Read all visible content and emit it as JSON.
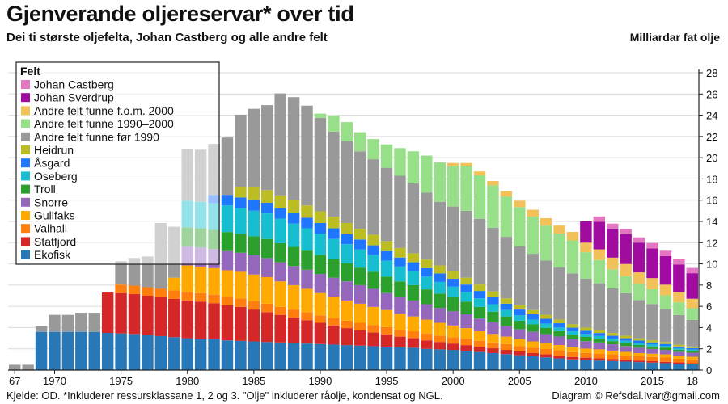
{
  "title": "Gjenverande oljereservar* over tid",
  "subtitle": "Dei ti største oljefelta, Johan Castberg og alle andre felt",
  "unit_label": "Milliardar fat olje",
  "source": "Kjelde: OD. *Inkluderer ressursklassane 1, 2 og 3. \"Olje\" inkluderer råolje, kondensat og NGL.",
  "credit": "Diagram © Refsdal.Ivar@gmail.com",
  "chart_data": {
    "type": "bar",
    "stacked": true,
    "title": "Gjenverande oljereservar* over tid",
    "ylabel": "Milliardar fat olje",
    "ylim": [
      0,
      28
    ],
    "yticks": [
      0,
      2,
      4,
      6,
      8,
      10,
      12,
      14,
      16,
      18,
      20,
      22,
      24,
      26,
      28
    ],
    "xtick_labels": [
      {
        "year": 1967,
        "label": "67"
      },
      {
        "year": 1970,
        "label": "1970"
      },
      {
        "year": 1975,
        "label": "1975"
      },
      {
        "year": 1980,
        "label": "1980"
      },
      {
        "year": 1985,
        "label": "1985"
      },
      {
        "year": 1990,
        "label": "1990"
      },
      {
        "year": 1995,
        "label": "1995"
      },
      {
        "year": 2000,
        "label": "2000"
      },
      {
        "year": 2005,
        "label": "2005"
      },
      {
        "year": 2010,
        "label": "2010"
      },
      {
        "year": 2015,
        "label": "2015"
      },
      {
        "year": 2018,
        "label": "18"
      }
    ],
    "legend_title": "Felt",
    "legend_position": "top-left",
    "categories": [
      1967,
      1968,
      1969,
      1970,
      1971,
      1972,
      1973,
      1974,
      1975,
      1976,
      1977,
      1978,
      1979,
      1980,
      1981,
      1982,
      1983,
      1984,
      1985,
      1986,
      1987,
      1988,
      1989,
      1990,
      1991,
      1992,
      1993,
      1994,
      1995,
      1996,
      1997,
      1998,
      1999,
      2000,
      2001,
      2002,
      2003,
      2004,
      2005,
      2006,
      2007,
      2008,
      2009,
      2010,
      2011,
      2012,
      2013,
      2014,
      2015,
      2016,
      2017,
      2018
    ],
    "series": [
      {
        "name": "Ekofisk",
        "color": "#2878b8",
        "values": [
          0,
          0,
          3.6,
          3.6,
          3.6,
          3.6,
          3.6,
          3.5,
          3.45,
          3.4,
          3.3,
          3.2,
          3.1,
          3.0,
          2.95,
          2.9,
          2.8,
          2.75,
          2.7,
          2.65,
          2.6,
          2.55,
          2.5,
          2.45,
          2.4,
          2.35,
          2.3,
          2.25,
          2.2,
          2.15,
          2.1,
          2.0,
          1.95,
          1.9,
          1.8,
          1.7,
          1.6,
          1.5,
          1.4,
          1.3,
          1.2,
          1.1,
          1.0,
          0.95,
          0.9,
          0.85,
          0.8,
          0.75,
          0.7,
          0.65,
          0.6,
          0.55
        ]
      },
      {
        "name": "Statfjord",
        "color": "#d62728",
        "values": [
          0,
          0,
          0,
          0,
          0,
          0,
          0,
          3.8,
          3.8,
          3.75,
          3.7,
          3.65,
          3.6,
          3.55,
          3.5,
          3.4,
          3.3,
          3.2,
          3.0,
          2.8,
          2.6,
          2.4,
          2.2,
          2.0,
          1.8,
          1.6,
          1.45,
          1.3,
          1.15,
          1.0,
          0.9,
          0.8,
          0.7,
          0.6,
          0.55,
          0.5,
          0.45,
          0.4,
          0.35,
          0.3,
          0.28,
          0.26,
          0.24,
          0.22,
          0.2,
          0.18,
          0.16,
          0.15,
          0.14,
          0.13,
          0.12,
          0.1
        ]
      },
      {
        "name": "Valhall",
        "color": "#ff7f0e",
        "values": [
          0,
          0,
          0,
          0,
          0,
          0,
          0,
          0,
          0.8,
          0.8,
          0.8,
          0.8,
          0.8,
          0.8,
          0.8,
          0.8,
          0.8,
          0.8,
          0.8,
          0.8,
          0.75,
          0.75,
          0.75,
          0.7,
          0.7,
          0.7,
          0.7,
          0.7,
          0.7,
          0.65,
          0.65,
          0.65,
          0.6,
          0.6,
          0.6,
          0.55,
          0.55,
          0.55,
          0.5,
          0.5,
          0.5,
          0.5,
          0.45,
          0.45,
          0.45,
          0.45,
          0.4,
          0.4,
          0.4,
          0.4,
          0.35,
          0.35
        ]
      },
      {
        "name": "Gullfaks",
        "color": "#ffaa00",
        "values": [
          0,
          0,
          0,
          0,
          0,
          0,
          0,
          0,
          0,
          0,
          0,
          0,
          1.2,
          2.5,
          2.5,
          2.5,
          2.5,
          2.5,
          2.5,
          2.5,
          2.4,
          2.3,
          2.2,
          2.1,
          2.0,
          1.9,
          1.8,
          1.7,
          1.6,
          1.5,
          1.4,
          1.3,
          1.2,
          1.1,
          1.0,
          0.9,
          0.8,
          0.7,
          0.65,
          0.6,
          0.55,
          0.5,
          0.45,
          0.4,
          0.4,
          0.35,
          0.35,
          0.3,
          0.3,
          0.3,
          0.25,
          0.25
        ]
      },
      {
        "name": "Snorre",
        "color": "#9467bd",
        "values": [
          0,
          0,
          0,
          0,
          0,
          0,
          0,
          0,
          0,
          0,
          0,
          0,
          0,
          1.8,
          1.8,
          1.8,
          1.8,
          1.8,
          1.8,
          1.8,
          1.8,
          1.8,
          1.8,
          1.8,
          1.8,
          1.8,
          1.75,
          1.7,
          1.6,
          1.55,
          1.5,
          1.45,
          1.4,
          1.35,
          1.3,
          1.2,
          1.1,
          1.0,
          0.95,
          0.9,
          0.85,
          0.8,
          0.75,
          0.7,
          0.65,
          0.6,
          0.55,
          0.5,
          0.45,
          0.42,
          0.4,
          0.38
        ]
      },
      {
        "name": "Troll",
        "color": "#2ca02c",
        "values": [
          0,
          0,
          0,
          0,
          0,
          0,
          0,
          0,
          0,
          0,
          0,
          0,
          0,
          1.8,
          1.8,
          1.8,
          1.8,
          1.8,
          1.8,
          1.8,
          1.8,
          1.8,
          1.8,
          1.8,
          1.75,
          1.7,
          1.65,
          1.6,
          1.55,
          1.5,
          1.45,
          1.4,
          1.35,
          1.3,
          1.2,
          1.1,
          1.0,
          0.9,
          0.8,
          0.7,
          0.6,
          0.5,
          0.45,
          0.4,
          0.35,
          0.3,
          0.28,
          0.26,
          0.24,
          0.22,
          0.2,
          0.18
        ]
      },
      {
        "name": "Oseberg",
        "color": "#17becf",
        "values": [
          0,
          0,
          0,
          0,
          0,
          0,
          0,
          0,
          0,
          0,
          0,
          0,
          0,
          2.5,
          2.5,
          2.5,
          2.5,
          2.4,
          2.4,
          2.4,
          2.3,
          2.2,
          2.1,
          2.0,
          1.9,
          1.8,
          1.7,
          1.6,
          1.5,
          1.4,
          1.3,
          1.2,
          1.1,
          1.0,
          0.9,
          0.8,
          0.7,
          0.6,
          0.5,
          0.45,
          0.4,
          0.35,
          0.3,
          0.28,
          0.26,
          0.24,
          0.22,
          0.2,
          0.18,
          0.16,
          0.14,
          0.12
        ]
      },
      {
        "name": "Åsgard",
        "color": "#1f77ff",
        "values": [
          0,
          0,
          0,
          0,
          0,
          0,
          0,
          0,
          0,
          0,
          0,
          0,
          0,
          0,
          0,
          0.8,
          1.0,
          1.0,
          1.0,
          1.0,
          1.0,
          1.0,
          1.0,
          1.0,
          1.0,
          0.95,
          0.95,
          0.9,
          0.9,
          0.85,
          0.85,
          0.8,
          0.8,
          0.75,
          0.7,
          0.7,
          0.65,
          0.6,
          0.55,
          0.5,
          0.45,
          0.4,
          0.35,
          0.3,
          0.28,
          0.26,
          0.24,
          0.22,
          0.2,
          0.18,
          0.16,
          0.14
        ]
      },
      {
        "name": "Heidrun",
        "color": "#bcbd22",
        "values": [
          0,
          0,
          0,
          0,
          0,
          0,
          0,
          0,
          0,
          0,
          0,
          0,
          0,
          0,
          0,
          0,
          0,
          1.0,
          1.2,
          1.2,
          1.2,
          1.2,
          1.15,
          1.1,
          1.1,
          1.05,
          1.0,
          1.0,
          0.95,
          0.9,
          0.85,
          0.8,
          0.75,
          0.7,
          0.65,
          0.6,
          0.55,
          0.5,
          0.45,
          0.4,
          0.38,
          0.35,
          0.32,
          0.3,
          0.28,
          0.26,
          0.24,
          0.22,
          0.2,
          0.18,
          0.16,
          0.15
        ]
      },
      {
        "name": "Andre felt funne før 1990",
        "color": "#999999",
        "values": [
          0.5,
          0.5,
          0.55,
          1.6,
          1.6,
          1.8,
          1.8,
          0,
          2.2,
          2.6,
          2.9,
          6.2,
          4.8,
          4.9,
          4.9,
          4.8,
          5.4,
          6.8,
          7.4,
          8.0,
          9.6,
          9.7,
          9.4,
          8.8,
          8.0,
          7.7,
          7.3,
          7.1,
          6.9,
          6.8,
          6.6,
          6.3,
          6.0,
          6.1,
          6.3,
          6.2,
          6.0,
          5.8,
          5.5,
          5.3,
          5.1,
          4.9,
          4.8,
          4.6,
          4.4,
          4.2,
          4.0,
          3.6,
          3.4,
          3.1,
          2.8,
          2.5
        ]
      },
      {
        "name": "Andre felt funne 1990–2000",
        "color": "#98df8a",
        "values": [
          0,
          0,
          0,
          0,
          0,
          0,
          0,
          0,
          0,
          0,
          0,
          0,
          0,
          0,
          0,
          0,
          0,
          0,
          0,
          0,
          0,
          0,
          0,
          0.4,
          1.5,
          1.8,
          1.8,
          1.9,
          2.2,
          2.6,
          3.0,
          3.5,
          3.7,
          3.8,
          4.2,
          4.1,
          4.0,
          3.8,
          3.7,
          3.5,
          3.3,
          3.2,
          3.1,
          2.5,
          2.2,
          1.8,
          1.6,
          1.5,
          1.4,
          1.3,
          1.2,
          1.1
        ]
      },
      {
        "name": "Andre felt funne f.o.m. 2000",
        "color": "#f2c15a",
        "values": [
          0,
          0,
          0,
          0,
          0,
          0,
          0,
          0,
          0,
          0,
          0,
          0,
          0,
          0,
          0,
          0,
          0,
          0,
          0,
          0,
          0,
          0,
          0,
          0,
          0,
          0,
          0,
          0,
          0,
          0,
          0,
          0,
          0,
          0.3,
          0.3,
          0.35,
          0.4,
          0.5,
          0.6,
          0.65,
          0.7,
          0.75,
          0.8,
          0.9,
          1.0,
          1.1,
          1.15,
          1.1,
          1.05,
          1.0,
          0.95,
          0.9
        ]
      },
      {
        "name": "Johan Sverdrup",
        "color": "#a00ba0",
        "values": [
          0,
          0,
          0,
          0,
          0,
          0,
          0,
          0,
          0,
          0,
          0,
          0,
          0,
          0,
          0,
          0,
          0,
          0,
          0,
          0,
          0,
          0,
          0,
          0,
          0,
          0,
          0,
          0,
          0,
          0,
          0,
          0,
          0,
          0,
          0,
          0,
          0,
          0,
          0,
          0,
          0,
          0,
          0,
          2.0,
          2.6,
          2.7,
          2.8,
          2.8,
          2.8,
          2.7,
          2.6,
          2.4
        ]
      },
      {
        "name": "Johan Castberg",
        "color": "#e377c2",
        "values": [
          0,
          0,
          0,
          0,
          0,
          0,
          0,
          0,
          0,
          0,
          0,
          0,
          0,
          0,
          0,
          0,
          0,
          0,
          0,
          0,
          0,
          0,
          0,
          0,
          0,
          0,
          0,
          0,
          0,
          0,
          0,
          0,
          0,
          0,
          0,
          0,
          0,
          0,
          0,
          0,
          0,
          0,
          0,
          0,
          0.5,
          0.5,
          0.5,
          0.5,
          0.5,
          0.5,
          0.5,
          0.5
        ]
      }
    ]
  }
}
